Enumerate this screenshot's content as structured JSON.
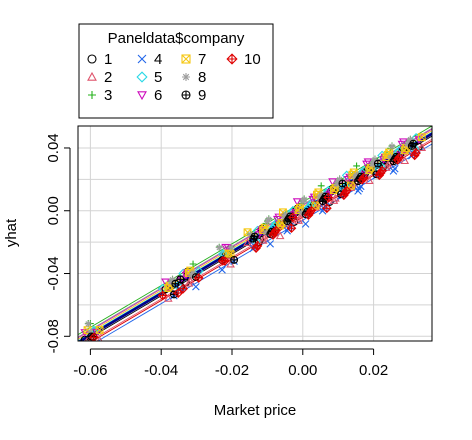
{
  "chart_data": {
    "type": "scatter",
    "title": "",
    "xlabel": "Market price",
    "ylabel": "yhat",
    "xlim": [
      -0.0635,
      0.0365
    ],
    "ylim": [
      -0.083,
      0.054
    ],
    "x_ticks": [
      -0.06,
      -0.04,
      -0.02,
      0.0,
      0.02
    ],
    "x_tick_labels": [
      "-0.06",
      "-0.04",
      "-0.02",
      "0.00",
      "0.02"
    ],
    "y_ticks": [
      -0.08,
      -0.04,
      0.0,
      0.04
    ],
    "y_tick_labels": [
      "-0.08",
      "-0.04",
      "0.00",
      "0.04"
    ],
    "grid": true,
    "legend": {
      "title": "Paneldata$company",
      "position": "top-left (outside plot, above)",
      "entries": [
        "1",
        "2",
        "3",
        "4",
        "5",
        "6",
        "7",
        "8",
        "9",
        "10"
      ]
    },
    "x_sample": [
      -0.06,
      -0.059,
      -0.038,
      -0.036,
      -0.033,
      -0.031,
      -0.022,
      -0.021,
      -0.014,
      -0.012,
      -0.01,
      -0.008,
      -0.006,
      -0.004,
      -0.002,
      0.0,
      0.002,
      0.004,
      0.006,
      0.008,
      0.01,
      0.012,
      0.014,
      0.016,
      0.018,
      0.02,
      0.022,
      0.024,
      0.026,
      0.028,
      0.03,
      0.032
    ],
    "series": [
      {
        "name": "1",
        "color": "#000000",
        "marker": "circle",
        "intercept": 0.0,
        "slope": 1.33
      },
      {
        "name": "2",
        "color": "#df536b",
        "marker": "triangle-up",
        "intercept": -0.003,
        "slope": 1.33
      },
      {
        "name": "3",
        "color": "#23b11a",
        "marker": "plus",
        "intercept": 0.0055,
        "slope": 1.33
      },
      {
        "name": "4",
        "color": "#2166ea",
        "marker": "x",
        "intercept": -0.006,
        "slope": 1.33
      },
      {
        "name": "5",
        "color": "#28d8e6",
        "marker": "diamond",
        "intercept": 0.0015,
        "slope": 1.33
      },
      {
        "name": "6",
        "color": "#cd0bbc",
        "marker": "triangle-down",
        "intercept": 0.0035,
        "slope": 1.33
      },
      {
        "name": "7",
        "color": "#f5c710",
        "marker": "square-x",
        "intercept": 0.0025,
        "slope": 1.33
      },
      {
        "name": "8",
        "color": "#9e9e9e",
        "marker": "asterisk",
        "intercept": 0.004,
        "slope": 1.33
      },
      {
        "name": "9",
        "color": "#000000",
        "marker": "circle-plus",
        "intercept": -0.001,
        "slope": 1.33
      },
      {
        "name": "10",
        "color": "#df0000",
        "marker": "diamond-plus",
        "intercept": -0.004,
        "slope": 1.33
      }
    ],
    "overall_fit": {
      "color": "#00008b",
      "intercept": 0.0005,
      "slope": 1.33
    }
  }
}
